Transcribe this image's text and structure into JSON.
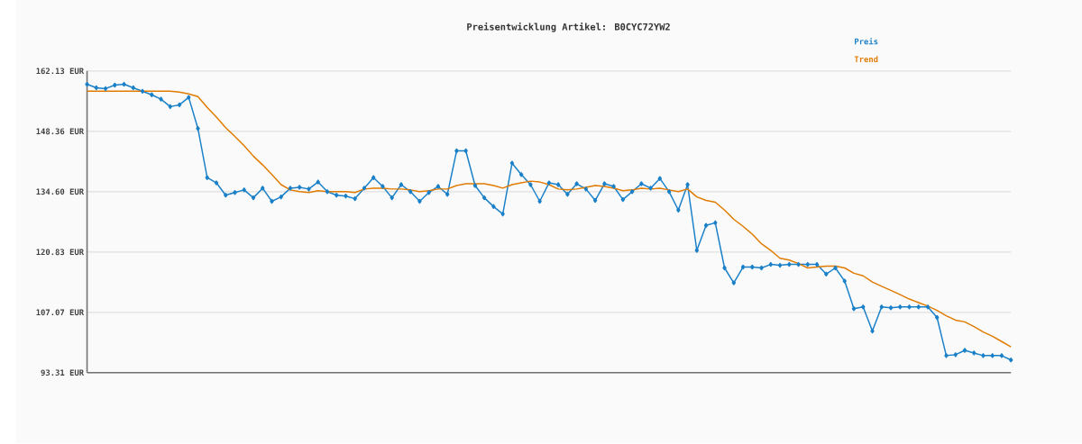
{
  "chart_data": {
    "type": "line",
    "title": "Preisentwicklung Artikel: B0CYC72YW2",
    "categories": [
      null,
      null,
      null,
      null,
      null,
      null,
      null,
      null,
      null,
      null,
      null,
      null,
      null,
      null,
      null,
      null,
      null,
      null,
      null,
      null,
      null,
      null,
      null,
      null,
      null,
      null,
      null,
      null,
      null,
      null,
      null,
      null,
      null,
      null,
      null,
      null,
      null,
      null,
      null,
      null,
      null,
      null,
      null,
      null,
      null,
      null,
      null,
      null,
      null,
      null,
      null,
      null,
      null,
      null,
      null,
      null,
      null,
      null,
      null,
      null,
      null,
      null,
      null,
      null,
      null,
      null,
      null,
      null,
      null,
      null,
      null,
      null,
      null,
      null,
      null,
      null,
      null,
      null,
      null,
      null,
      null,
      null,
      null,
      null,
      null,
      null,
      null,
      null,
      null,
      null,
      null,
      null,
      null,
      null,
      null,
      null,
      null,
      null,
      null,
      null,
      null
    ],
    "series": [
      {
        "name": "Preis",
        "color": "#1a80c8",
        "marker": "diamond",
        "values": [
          159.1,
          158.3,
          158.1,
          158.9,
          159.1,
          158.3,
          157.5,
          156.7,
          155.7,
          154.0,
          154.4,
          156.1,
          149.0,
          137.8,
          136.6,
          133.8,
          134.4,
          135.0,
          133.2,
          135.4,
          132.4,
          133.4,
          135.4,
          135.6,
          135.2,
          136.8,
          134.6,
          133.8,
          133.6,
          133.0,
          135.4,
          137.8,
          135.8,
          133.2,
          136.2,
          134.6,
          132.4,
          134.4,
          135.8,
          134.0,
          143.9,
          143.9,
          136.0,
          133.2,
          131.2,
          129.5,
          141.1,
          138.5,
          136.2,
          132.4,
          136.6,
          136.2,
          134.0,
          136.4,
          135.2,
          132.6,
          136.4,
          135.8,
          132.8,
          134.6,
          136.4,
          135.4,
          137.6,
          134.6,
          130.4,
          136.2,
          121.2,
          126.9,
          127.5,
          117.2,
          113.8,
          117.4,
          117.4,
          117.2,
          118.0,
          117.8,
          118.0,
          118.0,
          118.0,
          118.0,
          115.8,
          117.2,
          114.2,
          107.9,
          108.3,
          102.8,
          108.3,
          108.1,
          108.3,
          108.3,
          108.3,
          108.3,
          105.9,
          97.2,
          97.4,
          98.4,
          97.8,
          97.2,
          97.2,
          97.2,
          96.2
        ]
      },
      {
        "name": "Trend",
        "color": "#e07b00",
        "marker": "none",
        "values": [
          157.5,
          157.5,
          157.5,
          157.5,
          157.5,
          157.5,
          157.5,
          157.5,
          157.5,
          157.5,
          157.3,
          156.9,
          156.3,
          153.8,
          151.6,
          149.2,
          147.2,
          145.1,
          142.7,
          140.7,
          138.5,
          136.2,
          135.0,
          134.6,
          134.4,
          134.8,
          134.6,
          134.6,
          134.6,
          134.4,
          135.2,
          135.4,
          135.4,
          135.2,
          135.2,
          135.0,
          134.6,
          134.8,
          135.2,
          135.2,
          136.0,
          136.4,
          136.4,
          136.4,
          136.0,
          135.4,
          136.2,
          136.6,
          137.0,
          136.8,
          136.2,
          135.2,
          135.0,
          135.2,
          135.6,
          136.0,
          135.8,
          135.4,
          134.8,
          135.0,
          135.4,
          135.2,
          135.4,
          135.0,
          134.6,
          135.2,
          133.4,
          132.6,
          132.2,
          130.4,
          128.3,
          126.7,
          124.9,
          122.7,
          121.2,
          119.4,
          119.0,
          118.2,
          117.2,
          117.4,
          117.6,
          117.6,
          117.2,
          116.0,
          115.4,
          114.0,
          113.0,
          112.1,
          111.1,
          110.1,
          109.3,
          108.5,
          107.5,
          106.3,
          105.3,
          104.9,
          103.8,
          102.6,
          101.6,
          100.4,
          99.2
        ]
      }
    ],
    "ylim": [
      93.31,
      162.13
    ],
    "yticks": [
      {
        "value": 93.31,
        "label": "93.31 EUR"
      },
      {
        "value": 107.07,
        "label": "107.07 EUR"
      },
      {
        "value": 120.83,
        "label": "120.83 EUR"
      },
      {
        "value": 134.6,
        "label": "134.60 EUR"
      },
      {
        "value": 148.36,
        "label": "148.36 EUR"
      },
      {
        "value": 162.13,
        "label": "162.13 EUR"
      }
    ],
    "grid": "y",
    "legend": "top right",
    "line_style": "solid"
  }
}
